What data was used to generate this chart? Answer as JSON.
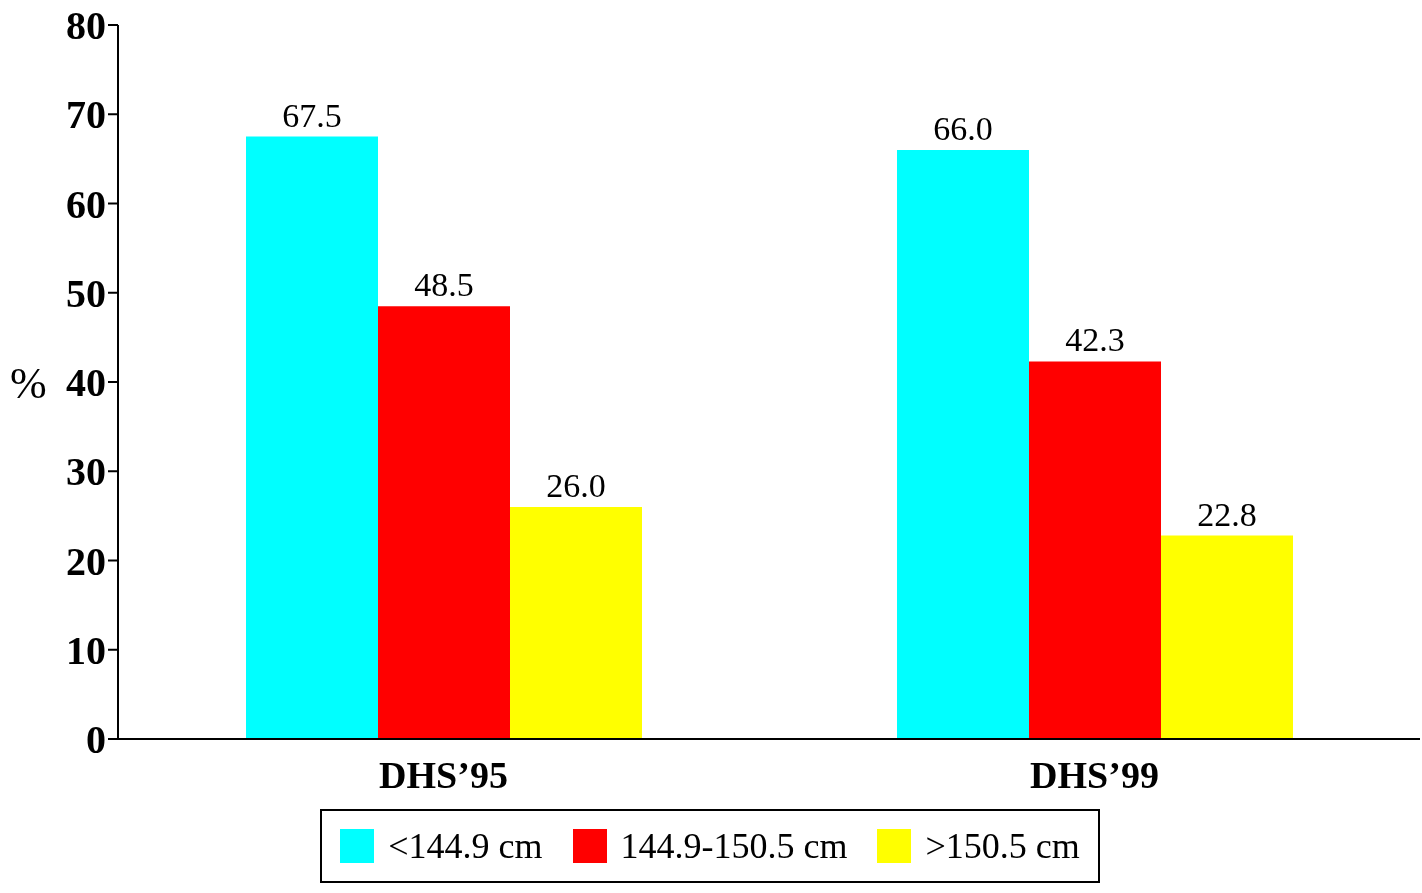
{
  "chart_data": {
    "type": "bar",
    "categories": [
      "DHS’95",
      "DHS’99"
    ],
    "ylabel": "%",
    "series": [
      {
        "name": "<144.9 cm",
        "color": "#00ffff",
        "values": [
          67.5,
          66.0
        ],
        "value_labels": [
          "67.5",
          "66.0"
        ]
      },
      {
        "name": "144.9-150.5 cm",
        "color": "#ff0000",
        "values": [
          48.5,
          42.3
        ],
        "value_labels": [
          "48.5",
          "42.3"
        ]
      },
      {
        "name": ">150.5 cm",
        "color": "#ffff00",
        "values": [
          26.0,
          22.8
        ],
        "value_labels": [
          "26.0",
          "22.8"
        ]
      }
    ],
    "ylim": [
      0,
      80
    ],
    "yticks": [
      0,
      10,
      20,
      30,
      40,
      50,
      60,
      70,
      80
    ],
    "grid": false,
    "legend": "bottom"
  }
}
